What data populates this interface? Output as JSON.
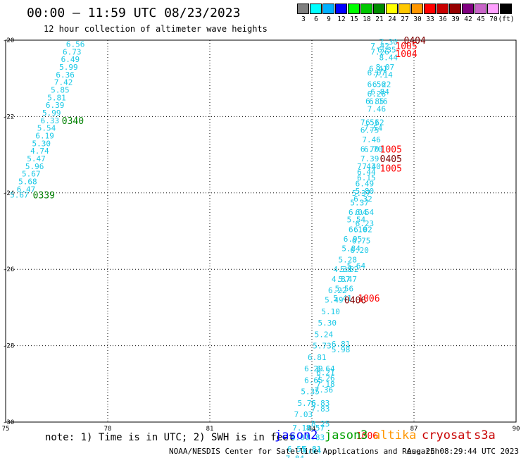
{
  "title": "00:00 — 11:59 UTC 08/23/2023",
  "subtitle": "12 hour collection of altimeter wave heights",
  "scale": {
    "colors": [
      "#808080",
      "#00ffff",
      "#00b0ff",
      "#0000ff",
      "#00ff00",
      "#00c800",
      "#008c00",
      "#ffff00",
      "#ffc800",
      "#ff9600",
      "#ff0000",
      "#c80000",
      "#960000",
      "#800080",
      "#c864c8",
      "#ffa0ff",
      "#000000"
    ],
    "labels": [
      "3",
      "6",
      "9",
      "12",
      "15",
      "18",
      "21",
      "24",
      "27",
      "30",
      "33",
      "36",
      "39",
      "42",
      "45",
      "70",
      "(ft)"
    ]
  },
  "note": "note:  1) Time is in UTC;  2) SWH is in feet",
  "satellites": [
    {
      "name": "jason2",
      "color": "#0000ff"
    },
    {
      "name": "jason3",
      "color": "#00a000"
    },
    {
      "name": "altika",
      "color": "#ff9600"
    },
    {
      "name": "cryosat",
      "color": "#c80000"
    },
    {
      "name": "s3a",
      "color": "#c80000"
    }
  ],
  "footer_left": "NOAA/NESDIS Center for Satellite Applications and Research",
  "footer_right": "Aug 25 08:29:44 UTC 2023",
  "chart_data": {
    "type": "scatter",
    "xlim": [
      75,
      90
    ],
    "ylim": [
      -30,
      -20
    ],
    "x_ticks": [
      "75",
      "78",
      "81",
      "84",
      "87",
      "90"
    ],
    "y_ticks": [
      "-20",
      "-22",
      "-24",
      "-26",
      "-28",
      "-30"
    ],
    "grid": true,
    "wave_heights": [
      {
        "x": 77.05,
        "y": -20.1,
        "v": "6.56"
      },
      {
        "x": 76.95,
        "y": -20.3,
        "v": "6.73"
      },
      {
        "x": 76.9,
        "y": -20.5,
        "v": "6.49"
      },
      {
        "x": 76.85,
        "y": -20.7,
        "v": "5.99"
      },
      {
        "x": 76.75,
        "y": -20.9,
        "v": "6.36"
      },
      {
        "x": 76.7,
        "y": -21.1,
        "v": "7.42"
      },
      {
        "x": 76.6,
        "y": -21.3,
        "v": "5.85"
      },
      {
        "x": 76.5,
        "y": -21.5,
        "v": "5.81"
      },
      {
        "x": 76.45,
        "y": -21.7,
        "v": "6.39"
      },
      {
        "x": 76.35,
        "y": -21.9,
        "v": "5.99"
      },
      {
        "x": 76.3,
        "y": -22.1,
        "v": "6.33"
      },
      {
        "x": 76.2,
        "y": -22.3,
        "v": "5.54"
      },
      {
        "x": 76.15,
        "y": -22.5,
        "v": "6.19"
      },
      {
        "x": 76.05,
        "y": -22.7,
        "v": "5.30"
      },
      {
        "x": 76.0,
        "y": -22.9,
        "v": "4.74"
      },
      {
        "x": 75.9,
        "y": -23.1,
        "v": "5.47"
      },
      {
        "x": 75.85,
        "y": -23.3,
        "v": "5.96"
      },
      {
        "x": 75.75,
        "y": -23.5,
        "v": "5.67"
      },
      {
        "x": 75.65,
        "y": -23.7,
        "v": "5.68"
      },
      {
        "x": 75.6,
        "y": -23.9,
        "v": "6.47"
      },
      {
        "x": 75.4,
        "y": -24.05,
        "v": "5.67"
      },
      {
        "x": 86.25,
        "y": -20.05,
        "v": "7.30"
      },
      {
        "x": 86.0,
        "y": -20.15,
        "v": "7.42"
      },
      {
        "x": 86.2,
        "y": -20.25,
        "v": "6.35"
      },
      {
        "x": 86.0,
        "y": -20.3,
        "v": "7.26"
      },
      {
        "x": 86.25,
        "y": -20.45,
        "v": "8.44"
      },
      {
        "x": 86.15,
        "y": -20.7,
        "v": "8.07"
      },
      {
        "x": 85.95,
        "y": -20.75,
        "v": "6.41"
      },
      {
        "x": 85.9,
        "y": -20.85,
        "v": "6.07"
      },
      {
        "x": 86.1,
        "y": -20.9,
        "v": "7.14"
      },
      {
        "x": 85.9,
        "y": -21.15,
        "v": "6.56"
      },
      {
        "x": 86.05,
        "y": -21.15,
        "v": "6.22"
      },
      {
        "x": 85.9,
        "y": -21.4,
        "v": "6.26"
      },
      {
        "x": 86.0,
        "y": -21.35,
        "v": "6.84"
      },
      {
        "x": 85.85,
        "y": -21.6,
        "v": "6.85"
      },
      {
        "x": 85.95,
        "y": -21.6,
        "v": "6.16"
      },
      {
        "x": 85.9,
        "y": -21.8,
        "v": "7.46"
      },
      {
        "x": 85.7,
        "y": -22.15,
        "v": "7.51"
      },
      {
        "x": 85.85,
        "y": -22.15,
        "v": "6.62"
      },
      {
        "x": 85.8,
        "y": -22.3,
        "v": "7.54"
      },
      {
        "x": 85.7,
        "y": -22.35,
        "v": "6.75"
      },
      {
        "x": 85.75,
        "y": -22.6,
        "v": "7.46"
      },
      {
        "x": 85.7,
        "y": -22.85,
        "v": "6.70"
      },
      {
        "x": 85.8,
        "y": -22.85,
        "v": "6.70"
      },
      {
        "x": 85.7,
        "y": -23.1,
        "v": "7.39"
      },
      {
        "x": 85.6,
        "y": -23.3,
        "v": "7.43"
      },
      {
        "x": 85.75,
        "y": -23.3,
        "v": "7.40"
      },
      {
        "x": 85.6,
        "y": -23.45,
        "v": "6.44"
      },
      {
        "x": 85.6,
        "y": -23.6,
        "v": "6.15"
      },
      {
        "x": 85.55,
        "y": -23.75,
        "v": "6.49"
      },
      {
        "x": 85.55,
        "y": -23.95,
        "v": "5.80"
      },
      {
        "x": 85.45,
        "y": -24.0,
        "v": "5.37"
      },
      {
        "x": 85.5,
        "y": -24.15,
        "v": "6.32"
      },
      {
        "x": 85.4,
        "y": -24.25,
        "v": "5.37"
      },
      {
        "x": 85.35,
        "y": -24.5,
        "v": "6.04"
      },
      {
        "x": 85.55,
        "y": -24.5,
        "v": "6.64"
      },
      {
        "x": 85.3,
        "y": -24.7,
        "v": "5.54"
      },
      {
        "x": 85.55,
        "y": -24.8,
        "v": "6.23"
      },
      {
        "x": 85.35,
        "y": -24.95,
        "v": "6.10"
      },
      {
        "x": 85.5,
        "y": -24.95,
        "v": "6.02"
      },
      {
        "x": 85.2,
        "y": -25.2,
        "v": "6.95"
      },
      {
        "x": 85.45,
        "y": -25.25,
        "v": "6.75"
      },
      {
        "x": 85.15,
        "y": -25.45,
        "v": "5.84"
      },
      {
        "x": 85.4,
        "y": -25.5,
        "v": "6.20"
      },
      {
        "x": 85.05,
        "y": -25.75,
        "v": "5.28"
      },
      {
        "x": 85.3,
        "y": -25.9,
        "v": "5.64"
      },
      {
        "x": 84.9,
        "y": -26.0,
        "v": "4.38"
      },
      {
        "x": 85.1,
        "y": -26.0,
        "v": "5.62"
      },
      {
        "x": 84.85,
        "y": -26.25,
        "v": "4.87"
      },
      {
        "x": 85.05,
        "y": -26.25,
        "v": "5.47"
      },
      {
        "x": 84.75,
        "y": -26.55,
        "v": "6.22"
      },
      {
        "x": 84.95,
        "y": -26.5,
        "v": "5.56"
      },
      {
        "x": 84.65,
        "y": -26.8,
        "v": "5.49"
      },
      {
        "x": 84.9,
        "y": -26.75,
        "v": "5.41"
      },
      {
        "x": 84.55,
        "y": -27.1,
        "v": "5.10"
      },
      {
        "x": 84.45,
        "y": -27.4,
        "v": "5.30"
      },
      {
        "x": 84.35,
        "y": -27.7,
        "v": "5.24"
      },
      {
        "x": 84.3,
        "y": -28.0,
        "v": "5.73"
      },
      {
        "x": 84.85,
        "y": -27.95,
        "v": "6.81"
      },
      {
        "x": 84.85,
        "y": -28.1,
        "v": "5.98"
      },
      {
        "x": 84.15,
        "y": -28.3,
        "v": "6.81"
      },
      {
        "x": 84.05,
        "y": -28.6,
        "v": "6.29"
      },
      {
        "x": 84.4,
        "y": -28.6,
        "v": "6.64"
      },
      {
        "x": 84.4,
        "y": -28.7,
        "v": "6.21"
      },
      {
        "x": 84.4,
        "y": -28.85,
        "v": "7.26"
      },
      {
        "x": 84.05,
        "y": -28.9,
        "v": "6.65"
      },
      {
        "x": 84.4,
        "y": -29.0,
        "v": "7.18"
      },
      {
        "x": 84.35,
        "y": -29.15,
        "v": "7.36"
      },
      {
        "x": 83.95,
        "y": -29.2,
        "v": "5.35"
      },
      {
        "x": 83.85,
        "y": -29.5,
        "v": "5.76"
      },
      {
        "x": 84.25,
        "y": -29.5,
        "v": "6.83"
      },
      {
        "x": 84.25,
        "y": -29.65,
        "v": "7.83"
      },
      {
        "x": 83.75,
        "y": -29.8,
        "v": "7.03"
      },
      {
        "x": 84.25,
        "y": -30.05,
        "v": "8.25"
      },
      {
        "x": 83.7,
        "y": -30.15,
        "v": "7.18"
      },
      {
        "x": 84.1,
        "y": -30.15,
        "v": "8.57"
      },
      {
        "x": 83.65,
        "y": -30.4,
        "v": "8.07"
      },
      {
        "x": 84.1,
        "y": -30.4,
        "v": "8.83"
      },
      {
        "x": 83.55,
        "y": -30.7,
        "v": "6.55"
      },
      {
        "x": 84.0,
        "y": -30.7,
        "v": "6.81"
      },
      {
        "x": 84.0,
        "y": -30.75,
        "v": "9.04"
      },
      {
        "x": 83.5,
        "y": -30.95,
        "v": "7.84"
      }
    ],
    "pass_labels": [
      {
        "x": 76.65,
        "y": -22.1,
        "v": "0340",
        "color": "#008000"
      },
      {
        "x": 75.8,
        "y": -24.05,
        "v": "0339",
        "color": "#008000"
      },
      {
        "x": 86.7,
        "y": -20.0,
        "v": "0404",
        "color": "#800000"
      },
      {
        "x": 86.45,
        "y": -20.15,
        "v": "1005",
        "color": "#ff0000"
      },
      {
        "x": 86.45,
        "y": -20.35,
        "v": "1004",
        "color": "#ff0000"
      },
      {
        "x": 86.0,
        "y": -22.85,
        "v": "1005",
        "color": "#ff0000"
      },
      {
        "x": 86.0,
        "y": -23.1,
        "v": "0405",
        "color": "#800000"
      },
      {
        "x": 86.0,
        "y": -23.35,
        "v": "1005",
        "color": "#ff0000"
      },
      {
        "x": 84.95,
        "y": -26.8,
        "v": "0406",
        "color": "#800000"
      },
      {
        "x": 85.35,
        "y": -26.75,
        "v": "1006",
        "color": "#ff0000"
      },
      {
        "x": 85.3,
        "y": -30.35,
        "v": "1006",
        "color": "#ff0000"
      }
    ]
  }
}
